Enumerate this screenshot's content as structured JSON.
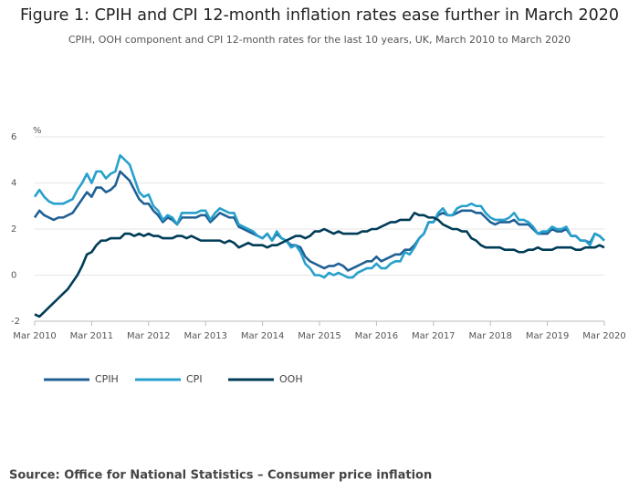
{
  "chart_data": {
    "type": "line",
    "title": "Figure 1: CPIH and CPI 12-month inflation rates ease further in March 2020",
    "subtitle": "CPIH, OOH component and CPI 12-month rates for the last 10 years, UK, March 2010 to March 2020",
    "y_label": "%",
    "source": "Source: Office for National Statistics – Consumer price inflation",
    "categories": [
      "Mar 2010",
      null,
      null,
      null,
      null,
      null,
      null,
      null,
      null,
      null,
      null,
      null,
      "Mar 2011",
      null,
      null,
      null,
      null,
      null,
      null,
      null,
      null,
      null,
      null,
      null,
      "Mar 2012",
      null,
      null,
      null,
      null,
      null,
      null,
      null,
      null,
      null,
      null,
      null,
      "Mar 2013",
      null,
      null,
      null,
      null,
      null,
      null,
      null,
      null,
      null,
      null,
      null,
      "Mar 2014",
      null,
      null,
      null,
      null,
      null,
      null,
      null,
      null,
      null,
      null,
      null,
      "Mar 2015",
      null,
      null,
      null,
      null,
      null,
      null,
      null,
      null,
      null,
      null,
      null,
      "Mar 2016",
      null,
      null,
      null,
      null,
      null,
      null,
      null,
      null,
      null,
      null,
      null,
      "Mar 2017",
      null,
      null,
      null,
      null,
      null,
      null,
      null,
      null,
      null,
      null,
      null,
      "Mar 2018",
      null,
      null,
      null,
      null,
      null,
      null,
      null,
      null,
      null,
      null,
      null,
      "Mar 2019",
      null,
      null,
      null,
      null,
      null,
      null,
      null,
      null,
      null,
      null,
      null,
      "Mar 2020"
    ],
    "ylim": [
      -2,
      6
    ],
    "yticks": [
      -2,
      0,
      2,
      4,
      6
    ],
    "grid": true,
    "legend": "bottom-left",
    "series": [
      {
        "name": "CPIH",
        "color": "#206095",
        "values": [
          2.5,
          2.8,
          2.6,
          2.5,
          2.4,
          2.5,
          2.5,
          2.6,
          2.7,
          3.0,
          3.3,
          3.6,
          3.4,
          3.8,
          3.8,
          3.6,
          3.7,
          3.9,
          4.5,
          4.3,
          4.1,
          3.7,
          3.3,
          3.1,
          3.1,
          2.8,
          2.6,
          2.3,
          2.5,
          2.4,
          2.2,
          2.5,
          2.5,
          2.5,
          2.5,
          2.6,
          2.6,
          2.3,
          2.5,
          2.7,
          2.6,
          2.5,
          2.5,
          2.1,
          2.0,
          1.9,
          1.8,
          1.7,
          1.6,
          1.8,
          1.5,
          1.8,
          1.6,
          1.5,
          1.3,
          1.3,
          1.2,
          0.8,
          0.6,
          0.5,
          0.4,
          0.3,
          0.4,
          0.4,
          0.5,
          0.4,
          0.2,
          0.3,
          0.4,
          0.5,
          0.6,
          0.6,
          0.8,
          0.6,
          0.7,
          0.8,
          0.9,
          0.9,
          1.1,
          1.1,
          1.3,
          1.6,
          1.8,
          2.3,
          2.3,
          2.6,
          2.7,
          2.6,
          2.6,
          2.7,
          2.8,
          2.8,
          2.8,
          2.7,
          2.7,
          2.5,
          2.3,
          2.2,
          2.3,
          2.3,
          2.3,
          2.4,
          2.2,
          2.2,
          2.2,
          2.0,
          1.8,
          1.8,
          1.8,
          2.0,
          1.9,
          1.9,
          2.0,
          1.7,
          1.7,
          1.5,
          1.5,
          1.4,
          1.8,
          1.7,
          1.5
        ]
      },
      {
        "name": "CPI",
        "color": "#27a0cc",
        "values": [
          3.4,
          3.7,
          3.4,
          3.2,
          3.1,
          3.1,
          3.1,
          3.2,
          3.3,
          3.7,
          4.0,
          4.4,
          4.0,
          4.5,
          4.5,
          4.2,
          4.4,
          4.5,
          5.2,
          5.0,
          4.8,
          4.2,
          3.6,
          3.4,
          3.5,
          3.0,
          2.8,
          2.4,
          2.6,
          2.5,
          2.2,
          2.7,
          2.7,
          2.7,
          2.7,
          2.8,
          2.8,
          2.4,
          2.7,
          2.9,
          2.8,
          2.7,
          2.7,
          2.2,
          2.1,
          2.0,
          1.9,
          1.7,
          1.6,
          1.8,
          1.5,
          1.9,
          1.6,
          1.5,
          1.2,
          1.3,
          1.0,
          0.5,
          0.3,
          0.0,
          0.0,
          -0.1,
          0.1,
          0.0,
          0.1,
          0.0,
          -0.1,
          -0.1,
          0.1,
          0.2,
          0.3,
          0.3,
          0.5,
          0.3,
          0.3,
          0.5,
          0.6,
          0.6,
          1.0,
          0.9,
          1.2,
          1.6,
          1.8,
          2.3,
          2.3,
          2.7,
          2.9,
          2.6,
          2.6,
          2.9,
          3.0,
          3.0,
          3.1,
          3.0,
          3.0,
          2.7,
          2.5,
          2.4,
          2.4,
          2.4,
          2.5,
          2.7,
          2.4,
          2.4,
          2.3,
          2.1,
          1.8,
          1.9,
          1.9,
          2.1,
          2.0,
          2.0,
          2.1,
          1.7,
          1.7,
          1.5,
          1.5,
          1.3,
          1.8,
          1.7,
          1.5
        ]
      },
      {
        "name": "OOH",
        "color": "#003c57",
        "values": [
          -1.7,
          -1.8,
          -1.6,
          -1.4,
          -1.2,
          -1.0,
          -0.8,
          -0.6,
          -0.3,
          0.0,
          0.4,
          0.9,
          1.0,
          1.3,
          1.5,
          1.5,
          1.6,
          1.6,
          1.6,
          1.8,
          1.8,
          1.7,
          1.8,
          1.7,
          1.8,
          1.7,
          1.7,
          1.6,
          1.6,
          1.6,
          1.7,
          1.7,
          1.6,
          1.7,
          1.6,
          1.5,
          1.5,
          1.5,
          1.5,
          1.5,
          1.4,
          1.5,
          1.4,
          1.2,
          1.3,
          1.4,
          1.3,
          1.3,
          1.3,
          1.2,
          1.3,
          1.3,
          1.4,
          1.5,
          1.6,
          1.7,
          1.7,
          1.6,
          1.7,
          1.9,
          1.9,
          2.0,
          1.9,
          1.8,
          1.9,
          1.8,
          1.8,
          1.8,
          1.8,
          1.9,
          1.9,
          2.0,
          2.0,
          2.1,
          2.2,
          2.3,
          2.3,
          2.4,
          2.4,
          2.4,
          2.7,
          2.6,
          2.6,
          2.5,
          2.5,
          2.4,
          2.2,
          2.1,
          2.0,
          2.0,
          1.9,
          1.9,
          1.6,
          1.5,
          1.3,
          1.2,
          1.2,
          1.2,
          1.2,
          1.1,
          1.1,
          1.1,
          1.0,
          1.0,
          1.1,
          1.1,
          1.2,
          1.1,
          1.1,
          1.1,
          1.2,
          1.2,
          1.2,
          1.2,
          1.1,
          1.1,
          1.2,
          1.2,
          1.2,
          1.3,
          1.2
        ]
      }
    ]
  }
}
